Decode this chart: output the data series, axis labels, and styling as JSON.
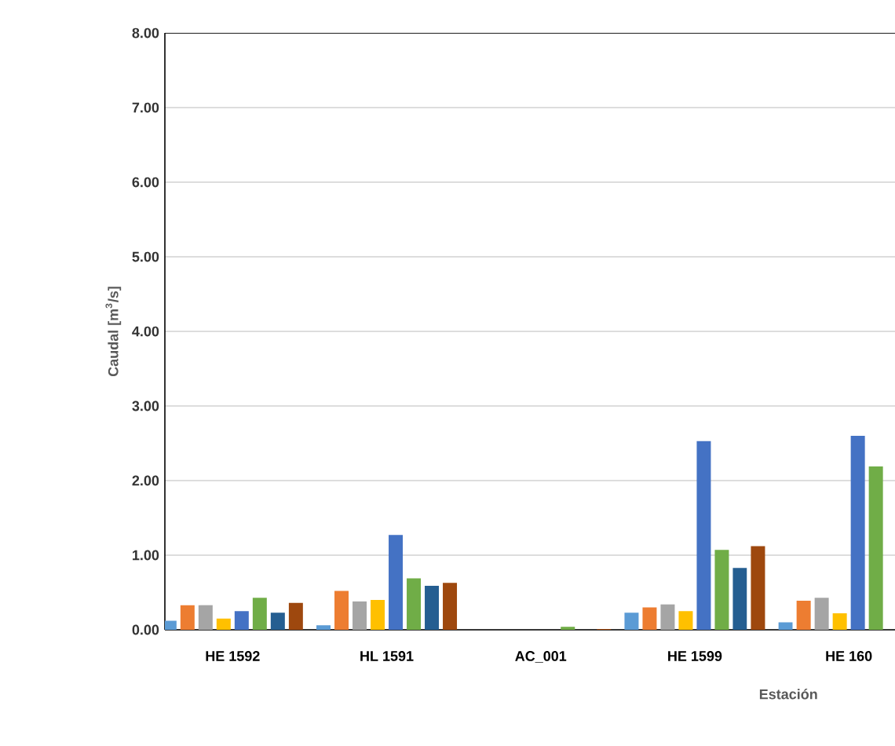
{
  "chart_data": {
    "type": "bar",
    "xlabel": "Estación",
    "ylabel": "Caudal [m$^{3}$/s]",
    "categories": [
      "HE 1592",
      "HL 1591",
      "AC_001",
      "HE 1599",
      "HE 160"
    ],
    "series": [
      {
        "color": "#5b9bd5",
        "values": [
          0.12,
          0.06,
          0,
          0.23,
          0.1
        ]
      },
      {
        "color": "#ed7d31",
        "values": [
          0.33,
          0.52,
          0,
          0.3,
          0.39
        ]
      },
      {
        "color": "#a5a5a5",
        "values": [
          0.33,
          0.38,
          0,
          0.34,
          0.43
        ]
      },
      {
        "color": "#ffc000",
        "values": [
          0.15,
          0.4,
          0,
          0.25,
          0.22
        ]
      },
      {
        "color": "#4472c4",
        "values": [
          0.25,
          1.27,
          0,
          2.53,
          2.6
        ]
      },
      {
        "color": "#70ad47",
        "values": [
          0.43,
          0.69,
          0.04,
          1.07,
          2.19
        ]
      },
      {
        "color": "#255e91",
        "values": [
          0.23,
          0.59,
          0,
          0.83,
          null
        ]
      },
      {
        "color": "#9e480e",
        "values": [
          0.36,
          0.63,
          0.01,
          1.12,
          null
        ]
      }
    ],
    "ylim": [
      0,
      8
    ],
    "yticks": [
      {
        "value": 0,
        "label": "0.00"
      },
      {
        "value": 1,
        "label": "1.00"
      },
      {
        "value": 2,
        "label": "2.00"
      },
      {
        "value": 3,
        "label": "3.00"
      },
      {
        "value": 4,
        "label": "4.00"
      },
      {
        "value": 5,
        "label": "5.00"
      },
      {
        "value": 6,
        "label": "6.00"
      },
      {
        "value": 7,
        "label": "7.00"
      },
      {
        "value": 8,
        "label": "8.00"
      }
    ],
    "grid": "y"
  }
}
